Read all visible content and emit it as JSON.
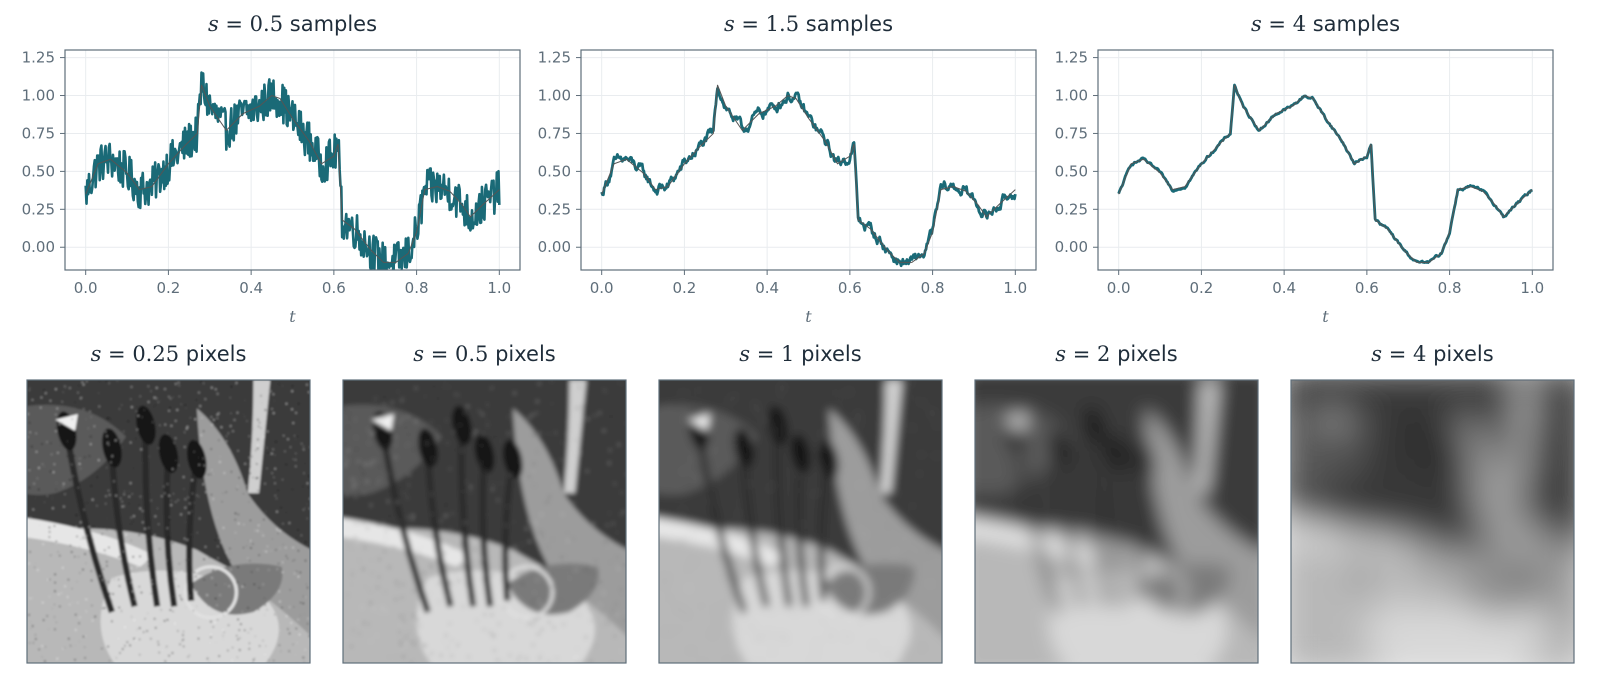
{
  "colors": {
    "series": "#1a6a77",
    "reference": "#555555",
    "axis": "#5f6e7a",
    "grid": "#e9ecef",
    "title": "#1f2d3a",
    "tick_text": "#5f6e7a"
  },
  "chart_data": [
    {
      "type": "line",
      "title_var": "s",
      "title_eq": " = ",
      "title_num": "0.5",
      "title_unit": " samples",
      "xlabel": "t",
      "ylabel": "",
      "xlim": [
        -0.05,
        1.05
      ],
      "ylim": [
        -0.15,
        1.3
      ],
      "xticks": [
        "0.0",
        "0.2",
        "0.4",
        "0.6",
        "0.8",
        "1.0"
      ],
      "yticks": [
        "0.00",
        "0.25",
        "0.50",
        "0.75",
        "1.00",
        "1.25"
      ],
      "grid": true,
      "smoothing": 0.5,
      "series": [
        {
          "role": "reference",
          "x": [
            0.0,
            0.03,
            0.06,
            0.1,
            0.13,
            0.16,
            0.2,
            0.24,
            0.27,
            0.28,
            0.3,
            0.34,
            0.38,
            0.42,
            0.45,
            0.47,
            0.5,
            0.54,
            0.57,
            0.6,
            0.61,
            0.62,
            0.65,
            0.69,
            0.72,
            0.75,
            0.78,
            0.8,
            0.82,
            0.85,
            0.88,
            0.91,
            0.93,
            0.96,
            1.0
          ],
          "values": [
            0.35,
            0.55,
            0.58,
            0.49,
            0.38,
            0.4,
            0.55,
            0.67,
            0.75,
            1.07,
            0.93,
            0.77,
            0.88,
            0.93,
            1.0,
            0.98,
            0.85,
            0.7,
            0.55,
            0.6,
            0.68,
            0.18,
            0.12,
            -0.02,
            -0.1,
            -0.1,
            -0.04,
            0.1,
            0.38,
            0.4,
            0.37,
            0.28,
            0.2,
            0.28,
            0.38
          ]
        },
        {
          "role": "filtered",
          "x": [
            0.0,
            0.03,
            0.06,
            0.1,
            0.13,
            0.16,
            0.2,
            0.24,
            0.27,
            0.28,
            0.3,
            0.34,
            0.38,
            0.42,
            0.45,
            0.47,
            0.5,
            0.54,
            0.57,
            0.6,
            0.61,
            0.62,
            0.65,
            0.69,
            0.72,
            0.75,
            0.78,
            0.8,
            0.82,
            0.85,
            0.88,
            0.91,
            0.93,
            0.96,
            1.0
          ],
          "values": [
            0.35,
            0.55,
            0.58,
            0.49,
            0.38,
            0.4,
            0.55,
            0.67,
            0.75,
            1.07,
            0.93,
            0.77,
            0.88,
            0.93,
            1.0,
            0.98,
            0.85,
            0.7,
            0.55,
            0.6,
            0.68,
            0.18,
            0.12,
            -0.02,
            -0.1,
            -0.1,
            -0.04,
            0.1,
            0.38,
            0.4,
            0.37,
            0.28,
            0.2,
            0.28,
            0.38
          ],
          "noise": 0.13
        }
      ]
    },
    {
      "type": "line",
      "title_var": "s",
      "title_eq": " = ",
      "title_num": "1.5",
      "title_unit": " samples",
      "xlabel": "t",
      "ylabel": "",
      "xlim": [
        -0.05,
        1.05
      ],
      "ylim": [
        -0.15,
        1.3
      ],
      "xticks": [
        "0.0",
        "0.2",
        "0.4",
        "0.6",
        "0.8",
        "1.0"
      ],
      "yticks": [
        "0.00",
        "0.25",
        "0.50",
        "0.75",
        "1.00",
        "1.25"
      ],
      "grid": true,
      "smoothing": 1.5,
      "series": [
        {
          "role": "reference",
          "x": [
            0.0,
            0.03,
            0.06,
            0.1,
            0.13,
            0.16,
            0.2,
            0.24,
            0.27,
            0.28,
            0.3,
            0.34,
            0.38,
            0.42,
            0.45,
            0.47,
            0.5,
            0.54,
            0.57,
            0.6,
            0.61,
            0.62,
            0.65,
            0.69,
            0.72,
            0.75,
            0.78,
            0.8,
            0.82,
            0.85,
            0.88,
            0.91,
            0.93,
            0.96,
            1.0
          ],
          "values": [
            0.35,
            0.55,
            0.58,
            0.49,
            0.38,
            0.4,
            0.55,
            0.67,
            0.75,
            1.07,
            0.93,
            0.77,
            0.88,
            0.93,
            1.0,
            0.98,
            0.85,
            0.7,
            0.55,
            0.6,
            0.68,
            0.18,
            0.12,
            -0.02,
            -0.1,
            -0.1,
            -0.04,
            0.1,
            0.38,
            0.4,
            0.37,
            0.28,
            0.2,
            0.28,
            0.38
          ]
        },
        {
          "role": "filtered",
          "x": [
            0.0,
            0.03,
            0.06,
            0.1,
            0.13,
            0.16,
            0.2,
            0.24,
            0.27,
            0.28,
            0.3,
            0.34,
            0.38,
            0.42,
            0.45,
            0.47,
            0.5,
            0.54,
            0.57,
            0.6,
            0.61,
            0.62,
            0.65,
            0.69,
            0.72,
            0.75,
            0.78,
            0.8,
            0.82,
            0.85,
            0.88,
            0.91,
            0.93,
            0.96,
            1.0
          ],
          "values": [
            0.35,
            0.55,
            0.58,
            0.49,
            0.38,
            0.4,
            0.55,
            0.67,
            0.75,
            1.07,
            0.93,
            0.77,
            0.88,
            0.93,
            1.0,
            0.98,
            0.85,
            0.7,
            0.55,
            0.6,
            0.68,
            0.18,
            0.12,
            -0.02,
            -0.1,
            -0.1,
            -0.04,
            0.1,
            0.38,
            0.4,
            0.37,
            0.28,
            0.2,
            0.28,
            0.38
          ],
          "noise": 0.05
        }
      ]
    },
    {
      "type": "line",
      "title_var": "s",
      "title_eq": " = ",
      "title_num": "4",
      "title_unit": " samples",
      "xlabel": "t",
      "ylabel": "",
      "xlim": [
        -0.05,
        1.05
      ],
      "ylim": [
        -0.15,
        1.3
      ],
      "xticks": [
        "0.0",
        "0.2",
        "0.4",
        "0.6",
        "0.8",
        "1.0"
      ],
      "yticks": [
        "0.00",
        "0.25",
        "0.50",
        "0.75",
        "1.00",
        "1.25"
      ],
      "grid": true,
      "smoothing": 4,
      "series": [
        {
          "role": "reference",
          "x": [
            0.0,
            0.03,
            0.06,
            0.1,
            0.13,
            0.16,
            0.2,
            0.24,
            0.27,
            0.28,
            0.3,
            0.34,
            0.38,
            0.42,
            0.45,
            0.47,
            0.5,
            0.54,
            0.57,
            0.6,
            0.61,
            0.62,
            0.65,
            0.69,
            0.72,
            0.75,
            0.78,
            0.8,
            0.82,
            0.85,
            0.88,
            0.91,
            0.93,
            0.96,
            1.0
          ],
          "values": [
            0.35,
            0.55,
            0.58,
            0.49,
            0.38,
            0.4,
            0.55,
            0.67,
            0.75,
            1.07,
            0.93,
            0.77,
            0.88,
            0.93,
            1.0,
            0.98,
            0.85,
            0.7,
            0.55,
            0.6,
            0.68,
            0.18,
            0.12,
            -0.02,
            -0.1,
            -0.1,
            -0.04,
            0.1,
            0.38,
            0.4,
            0.37,
            0.28,
            0.2,
            0.28,
            0.38
          ]
        },
        {
          "role": "filtered",
          "x": [
            0.0,
            0.03,
            0.06,
            0.1,
            0.13,
            0.16,
            0.2,
            0.24,
            0.27,
            0.28,
            0.3,
            0.34,
            0.38,
            0.42,
            0.45,
            0.47,
            0.5,
            0.54,
            0.57,
            0.6,
            0.61,
            0.62,
            0.65,
            0.69,
            0.72,
            0.75,
            0.78,
            0.8,
            0.82,
            0.85,
            0.88,
            0.91,
            0.93,
            0.96,
            1.0
          ],
          "values": [
            0.35,
            0.55,
            0.58,
            0.49,
            0.38,
            0.4,
            0.55,
            0.67,
            0.75,
            1.07,
            0.93,
            0.77,
            0.88,
            0.93,
            1.0,
            0.98,
            0.85,
            0.7,
            0.55,
            0.6,
            0.68,
            0.18,
            0.12,
            -0.02,
            -0.1,
            -0.1,
            -0.04,
            0.1,
            0.38,
            0.4,
            0.37,
            0.28,
            0.2,
            0.28,
            0.38
          ],
          "noise": 0.012
        }
      ]
    }
  ],
  "images": [
    {
      "title_var": "s",
      "title_eq": " = ",
      "title_num": "0.25",
      "title_unit": " pixels",
      "blur": 0.25
    },
    {
      "title_var": "s",
      "title_eq": " = ",
      "title_num": "0.5",
      "title_unit": " pixels",
      "blur": 0.5
    },
    {
      "title_var": "s",
      "title_eq": " = ",
      "title_num": "1",
      "title_unit": " pixels",
      "blur": 1
    },
    {
      "title_var": "s",
      "title_eq": " = ",
      "title_num": "2",
      "title_unit": " pixels",
      "blur": 2
    },
    {
      "title_var": "s",
      "title_eq": " = ",
      "title_num": "4",
      "title_unit": " pixels",
      "blur": 4
    }
  ]
}
